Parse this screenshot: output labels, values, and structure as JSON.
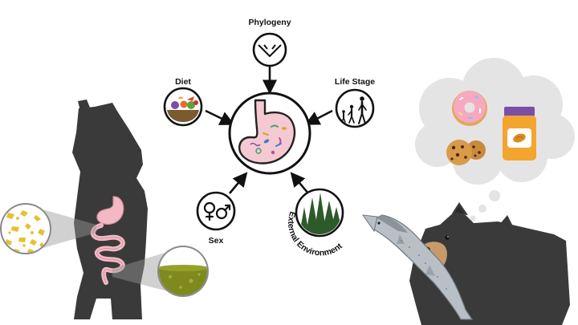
{
  "diagram": {
    "center": {
      "name": "gut microbiome",
      "icon": "stomach-microbes-icon"
    },
    "factors": [
      {
        "key": "phylogeny",
        "label": "Phylogeny",
        "icon": "phylogeny-tree-icon"
      },
      {
        "key": "diet",
        "label": "Diet",
        "icon": "food-bowl-icon"
      },
      {
        "key": "life_stage",
        "label": "Life Stage",
        "icon": "human-growth-icon"
      },
      {
        "key": "sex",
        "label": "Sex",
        "icon": "sex-symbols-icon"
      },
      {
        "key": "external_environment",
        "label": "External Environment",
        "icon": "forest-icon"
      }
    ]
  },
  "illustrations": {
    "left": {
      "subject": "standing-bear-with-gut",
      "icon": "bear-silhouette-icon",
      "insets": [
        "natural-diet-icon",
        "gut-content-icon"
      ]
    },
    "right": {
      "subject": "bear-eating-salmon",
      "icon": "bear-head-icon",
      "thought_items": [
        "donut-icon",
        "cookies-icon",
        "peanut-butter-jar-icon"
      ]
    }
  },
  "colors": {
    "bear": "#3a3a3a",
    "gut": "#f2b9c4",
    "fish": "#b9bfc6",
    "cloud": "#e4e4e4",
    "jar_lid": "#7b4fa8",
    "jar_body": "#f3a530",
    "donut": "#f7a9c1",
    "inset_gold": "#e7c02f",
    "inset_olive": "#7f8a1e",
    "tree": "#2d5a2a"
  }
}
